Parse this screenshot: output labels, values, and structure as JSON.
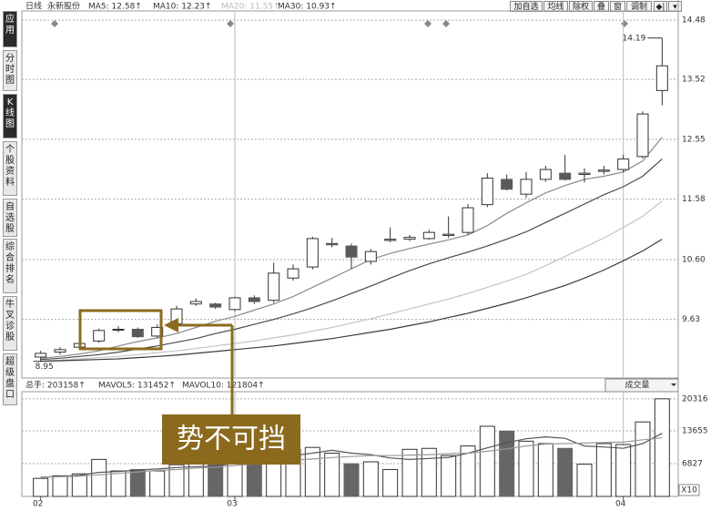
{
  "sidebar": [
    "应用",
    "分时图",
    "K线图",
    "个股资料",
    "自选股",
    "综合排名",
    "牛叉诊股",
    "超级盘口"
  ],
  "toolbar": {
    "period": "日线",
    "stock": "永新股份",
    "ma_labels": [
      "MA5: 12.58↑",
      "MA10: 12.23↑",
      "MA20: 11.55↑",
      "MA30: 10.93↑"
    ],
    "buttons": [
      "加自选",
      "均线",
      "除权",
      "叠",
      "窗",
      "调制"
    ]
  },
  "chart_data": [
    {
      "type": "candlestick",
      "categories": [
        "02",
        null,
        null,
        null,
        null,
        null,
        null,
        null,
        null,
        null,
        "03",
        null,
        null,
        null,
        null,
        null,
        null,
        null,
        null,
        null,
        null,
        null,
        null,
        null,
        null,
        null,
        null,
        null,
        null,
        null,
        "04",
        null,
        null
      ],
      "open": [
        9.02,
        9.1,
        9.18,
        9.28,
        9.46,
        9.47,
        9.36,
        9.56,
        9.88,
        9.88,
        9.79,
        9.98,
        9.94,
        10.3,
        10.48,
        10.84,
        10.82,
        10.57,
        10.91,
        10.93,
        10.94,
        10.99,
        11.04,
        11.49,
        11.9,
        11.66,
        11.9,
        12.0,
        11.98,
        12.03,
        12.06,
        12.27,
        13.34
      ],
      "close": [
        9.08,
        9.14,
        9.24,
        9.45,
        9.47,
        9.35,
        9.5,
        9.8,
        9.92,
        9.83,
        9.98,
        9.92,
        10.38,
        10.45,
        10.94,
        10.86,
        10.64,
        10.73,
        10.93,
        10.96,
        11.04,
        11.01,
        11.44,
        11.92,
        11.74,
        11.9,
        12.06,
        11.9,
        12.0,
        12.05,
        12.23,
        12.96,
        13.74
      ],
      "high": [
        9.12,
        9.18,
        9.28,
        9.48,
        9.52,
        9.5,
        9.55,
        9.85,
        9.97,
        9.9,
        10.0,
        10.02,
        10.55,
        10.52,
        10.97,
        10.95,
        10.86,
        10.77,
        11.12,
        11.0,
        11.08,
        11.3,
        11.5,
        12.0,
        11.98,
        12.02,
        12.12,
        12.3,
        12.08,
        12.12,
        12.3,
        13.0,
        14.19
      ],
      "low": [
        8.95,
        9.06,
        9.14,
        9.25,
        9.42,
        9.33,
        9.33,
        9.54,
        9.85,
        9.8,
        9.76,
        9.88,
        9.9,
        10.26,
        10.44,
        10.8,
        10.45,
        10.52,
        10.88,
        10.9,
        10.92,
        10.95,
        11.0,
        11.45,
        11.72,
        11.6,
        11.86,
        11.88,
        11.85,
        11.98,
        12.02,
        12.24,
        13.1
      ],
      "up_color": "#ffffff",
      "down_color": "#5a5a5a",
      "edge_color": "#333333",
      "series": [
        {
          "name": "MA5",
          "color": "#8a8a8a",
          "values": [
            9.0,
            9.03,
            9.07,
            9.12,
            9.2,
            9.27,
            9.33,
            9.4,
            9.5,
            9.6,
            9.68,
            9.78,
            9.88,
            10.0,
            10.15,
            10.3,
            10.45,
            10.6,
            10.7,
            10.78,
            10.85,
            10.92,
            11.0,
            11.15,
            11.35,
            11.52,
            11.68,
            11.8,
            11.9,
            11.95,
            12.02,
            12.2,
            12.58
          ]
        },
        {
          "name": "MA10",
          "color": "#4a4a4a",
          "values": [
            8.98,
            9.0,
            9.03,
            9.06,
            9.1,
            9.15,
            9.2,
            9.26,
            9.32,
            9.4,
            9.47,
            9.55,
            9.63,
            9.72,
            9.82,
            9.93,
            10.05,
            10.17,
            10.3,
            10.42,
            10.53,
            10.63,
            10.72,
            10.82,
            10.93,
            11.05,
            11.2,
            11.35,
            11.5,
            11.65,
            11.78,
            11.95,
            12.23
          ]
        },
        {
          "name": "MA20",
          "color": "#c4c4c4",
          "values": [
            8.96,
            8.97,
            8.99,
            9.01,
            9.03,
            9.06,
            9.09,
            9.12,
            9.16,
            9.2,
            9.24,
            9.28,
            9.33,
            9.38,
            9.44,
            9.5,
            9.57,
            9.64,
            9.72,
            9.8,
            9.88,
            9.96,
            10.05,
            10.15,
            10.25,
            10.36,
            10.5,
            10.65,
            10.8,
            10.95,
            11.12,
            11.3,
            11.55
          ]
        },
        {
          "name": "MA30",
          "color": "#3a3a3a",
          "values": [
            8.95,
            8.96,
            8.97,
            8.98,
            8.99,
            9.01,
            9.03,
            9.05,
            9.08,
            9.11,
            9.14,
            9.17,
            9.2,
            9.24,
            9.28,
            9.32,
            9.37,
            9.42,
            9.47,
            9.53,
            9.59,
            9.66,
            9.73,
            9.81,
            9.89,
            9.98,
            10.08,
            10.18,
            10.3,
            10.43,
            10.58,
            10.74,
            10.93
          ]
        }
      ],
      "ylim": [
        8.68,
        14.63
      ],
      "yticks": [
        9.63,
        {
          "value": 10.6,
          "label": "10.60"
        },
        11.58,
        12.55,
        13.52,
        14.48
      ],
      "grid": true,
      "annotation": "势不可挡"
    },
    {
      "type": "bar",
      "header": [
        "总手: 203158↑",
        "MAVOL5: 131452↑",
        "MAVOL10: 121804↑"
      ],
      "selector": "成交量",
      "values": [
        3760,
        4300,
        4700,
        7700,
        5300,
        5600,
        5300,
        6600,
        7100,
        7100,
        8100,
        8800,
        9500,
        9800,
        10200,
        9000,
        6800,
        7200,
        5600,
        9800,
        10000,
        8500,
        10500,
        14600,
        13600,
        11500,
        11000,
        10000,
        6700,
        11000,
        10800,
        15500,
        20316
      ],
      "series": [
        {
          "name": "MAVOL5",
          "color": "#555555",
          "values": [
            4000,
            4200,
            4400,
            5000,
            5200,
            5500,
            5700,
            6000,
            6200,
            6300,
            6900,
            7600,
            8000,
            8500,
            9000,
            9600,
            9000,
            8700,
            8000,
            7700,
            7900,
            8100,
            9000,
            10100,
            11200,
            12000,
            12400,
            12100,
            10500,
            10300,
            10000,
            11000,
            13145
          ]
        },
        {
          "name": "MAVOL10",
          "color": "#999999",
          "values": [
            4000,
            4100,
            4200,
            4500,
            4800,
            5100,
            5400,
            5600,
            5900,
            6100,
            6400,
            6800,
            7100,
            7500,
            7800,
            8100,
            8300,
            8500,
            8500,
            8600,
            8700,
            8900,
            9000,
            9400,
            9900,
            10500,
            10900,
            11000,
            11100,
            11200,
            11300,
            11800,
            12180
          ]
        }
      ],
      "ylim": [
        0,
        21800
      ],
      "yticks": [
        6827,
        13655,
        20316
      ],
      "y_unit": "X10",
      "grid": true
    }
  ]
}
